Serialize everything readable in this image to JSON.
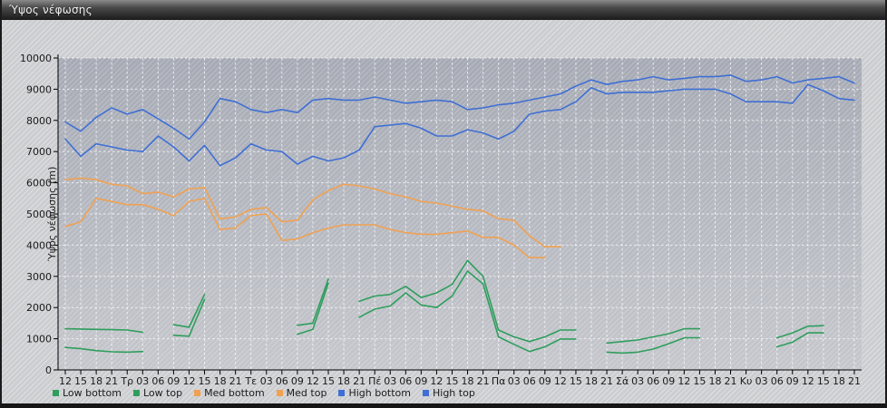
{
  "title": "Ύψος νέφωσης",
  "chart_data": {
    "type": "line",
    "title": "Ύψος νέφωσης",
    "xlabel": "",
    "ylabel": "Ύψος νέφωσης (m)",
    "ylim": [
      0,
      10000
    ],
    "ytick_step": 1000,
    "grid": true,
    "legend_position": "bottom-left",
    "categories": [
      "12",
      "15",
      "18",
      "21",
      "Τρ",
      "03",
      "06",
      "09",
      "12",
      "15",
      "18",
      "21",
      "Τε",
      "03",
      "06",
      "09",
      "12",
      "15",
      "18",
      "21",
      "Πέ",
      "03",
      "06",
      "09",
      "12",
      "15",
      "18",
      "21",
      "Πα",
      "03",
      "06",
      "09",
      "12",
      "15",
      "18",
      "21",
      "Σά",
      "03",
      "06",
      "09",
      "12",
      "15",
      "18",
      "21",
      "Κυ",
      "03",
      "06",
      "09",
      "12",
      "15",
      "18",
      "21"
    ],
    "series": [
      {
        "name": "Low bottom",
        "color": "#2f9e5d",
        "values": [
          720,
          680,
          620,
          580,
          570,
          590,
          null,
          1110,
          1080,
          2260,
          null,
          null,
          null,
          null,
          null,
          1140,
          1300,
          2780,
          null,
          1690,
          1950,
          2050,
          2470,
          2080,
          2000,
          2370,
          3170,
          2760,
          1060,
          820,
          590,
          740,
          990,
          990,
          null,
          570,
          540,
          570,
          670,
          840,
          1030,
          1030,
          null,
          null,
          null,
          null,
          740,
          890,
          1190,
          1190,
          null,
          null
        ]
      },
      {
        "name": "Low top",
        "color": "#2f9e5d",
        "values": [
          1320,
          1310,
          1300,
          1290,
          1280,
          1210,
          null,
          1450,
          1370,
          2420,
          null,
          null,
          null,
          null,
          null,
          1430,
          1500,
          2910,
          null,
          2200,
          2370,
          2420,
          2680,
          2320,
          2470,
          2740,
          3510,
          3000,
          1280,
          1060,
          910,
          1060,
          1280,
          1280,
          null,
          860,
          910,
          960,
          1060,
          1160,
          1320,
          1320,
          null,
          null,
          null,
          null,
          1030,
          1190,
          1400,
          1420,
          null,
          null
        ]
      },
      {
        "name": "Med bottom",
        "color": "#f0a152",
        "values": [
          4600,
          4750,
          5500,
          5400,
          5300,
          5300,
          5150,
          4950,
          5400,
          5500,
          4500,
          4550,
          4950,
          5000,
          4150,
          4200,
          4400,
          4550,
          4650,
          4650,
          4650,
          4500,
          4400,
          4350,
          4350,
          4400,
          4450,
          4250,
          4250,
          4000,
          3600,
          3600,
          null,
          null,
          null,
          null,
          null,
          null,
          null,
          null,
          null,
          null,
          null,
          null,
          null,
          null,
          null,
          null,
          null,
          null,
          null,
          null
        ]
      },
      {
        "name": "Med top",
        "color": "#f0a152",
        "values": [
          6100,
          6150,
          6100,
          5950,
          5900,
          5650,
          5700,
          5550,
          5800,
          5850,
          4850,
          4900,
          5150,
          5200,
          4750,
          4800,
          5450,
          5750,
          5950,
          5900,
          5800,
          5650,
          5550,
          5400,
          5350,
          5250,
          5150,
          5100,
          4850,
          4800,
          4300,
          3950,
          3950,
          null,
          null,
          null,
          null,
          null,
          null,
          null,
          null,
          null,
          null,
          null,
          null,
          null,
          null,
          null,
          null,
          null,
          null,
          null
        ]
      },
      {
        "name": "High bottom",
        "color": "#3f6fd4",
        "values": [
          7400,
          6850,
          7250,
          7150,
          7050,
          7000,
          7500,
          7150,
          6700,
          7200,
          6550,
          6800,
          7250,
          7050,
          7000,
          6600,
          6850,
          6700,
          6800,
          7050,
          7800,
          7850,
          7900,
          7750,
          7500,
          7500,
          7700,
          7600,
          7400,
          7650,
          8200,
          8300,
          8350,
          8600,
          9050,
          8850,
          8900,
          8900,
          8900,
          8950,
          9000,
          9000,
          9000,
          8850,
          8600,
          8600,
          8600,
          8550,
          9150,
          8950,
          8700,
          8650
        ]
      },
      {
        "name": "High top",
        "color": "#3f6fd4",
        "values": [
          7950,
          7650,
          8100,
          8400,
          8200,
          8350,
          8050,
          7750,
          7400,
          7950,
          8700,
          8600,
          8350,
          8250,
          8350,
          8250,
          8650,
          8700,
          8650,
          8650,
          8750,
          8650,
          8550,
          8600,
          8650,
          8600,
          8350,
          8400,
          8500,
          8550,
          8650,
          8750,
          8850,
          9100,
          9300,
          9150,
          9250,
          9300,
          9400,
          9300,
          9350,
          9400,
          9400,
          9450,
          9250,
          9300,
          9400,
          9200,
          9300,
          9350,
          9400,
          9200
        ]
      }
    ]
  }
}
